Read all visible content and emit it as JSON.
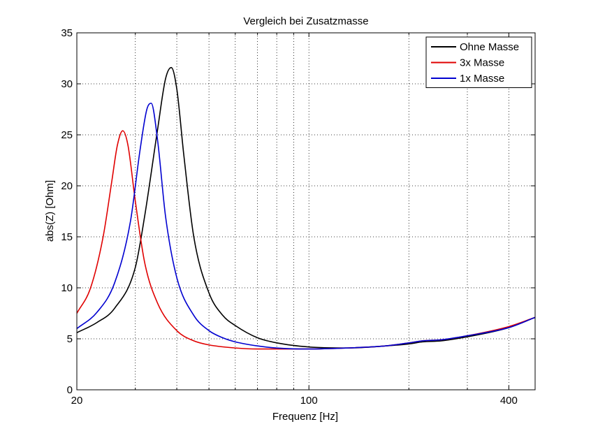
{
  "chart_data": {
    "type": "line",
    "title": "Vergleich bei Zusatzmasse",
    "xlabel": "Frequenz [Hz]",
    "ylabel": "abs(Z) [Ohm]",
    "xscale": "log",
    "xlim": [
      20,
      480
    ],
    "ylim": [
      0,
      35
    ],
    "xticks": [
      20,
      100,
      400
    ],
    "xtick_labels": [
      "20",
      "100",
      "400"
    ],
    "x_minor_grid": [
      30,
      40,
      50,
      60,
      70,
      80,
      90,
      200,
      300
    ],
    "yticks": [
      0,
      5,
      10,
      15,
      20,
      25,
      30,
      35
    ],
    "ytick_labels": [
      "0",
      "5",
      "10",
      "15",
      "20",
      "25",
      "30",
      "35"
    ],
    "grid": true,
    "legend_position": "top-right",
    "colors": {
      "ohne": "#000000",
      "x3": "#e00000",
      "x1": "#0000d0"
    },
    "series": [
      {
        "name": "Ohne Masse",
        "color": "#000000",
        "x": [
          20,
          23,
          26,
          30,
          32,
          35,
          37,
          38.5,
          40,
          42,
          45,
          50,
          55,
          60,
          70,
          80,
          100,
          130,
          170,
          200,
          220,
          250,
          300,
          400,
          480
        ],
        "y": [
          5.6,
          6.6,
          8.0,
          12.0,
          17.0,
          25.5,
          30.5,
          31.6,
          29.5,
          23.0,
          15.0,
          9.5,
          7.3,
          6.3,
          5.1,
          4.6,
          4.2,
          4.1,
          4.3,
          4.5,
          4.7,
          4.8,
          5.2,
          6.1,
          7.1
        ]
      },
      {
        "name": "3x Masse",
        "color": "#e00000",
        "x": [
          20,
          22,
          24,
          25.5,
          26.5,
          27.5,
          28.5,
          30,
          32,
          35,
          40,
          45,
          50,
          60,
          70,
          100,
          130,
          170,
          200,
          220,
          250,
          300,
          400,
          480
        ],
        "y": [
          7.5,
          10.0,
          15.0,
          20.5,
          24.0,
          25.4,
          24.0,
          18.5,
          12.5,
          8.5,
          5.8,
          4.8,
          4.4,
          4.1,
          4.0,
          4.0,
          4.1,
          4.3,
          4.6,
          4.8,
          4.9,
          5.3,
          6.2,
          7.1
        ]
      },
      {
        "name": "1x Masse",
        "color": "#0000d0",
        "x": [
          20,
          23,
          26,
          29,
          31,
          32.5,
          33.5,
          35,
          37,
          40,
          45,
          50,
          55,
          60,
          70,
          80,
          100,
          130,
          170,
          200,
          220,
          250,
          300,
          400,
          480
        ],
        "y": [
          6.0,
          7.6,
          10.5,
          16.5,
          23.5,
          27.5,
          28.1,
          24.5,
          17.0,
          11.0,
          7.3,
          5.8,
          5.1,
          4.7,
          4.3,
          4.1,
          4.0,
          4.1,
          4.3,
          4.6,
          4.8,
          4.9,
          5.3,
          6.1,
          7.1
        ]
      }
    ]
  }
}
